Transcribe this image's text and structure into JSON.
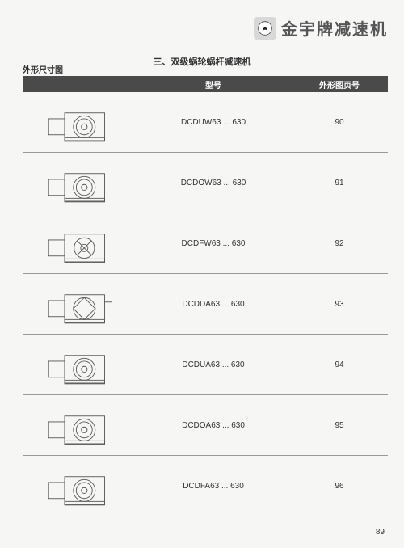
{
  "brand": "金宇牌减速机",
  "section_title": "三、双级蜗轮蜗杆减速机",
  "subtitle": "外形尺寸图",
  "columns": {
    "model": "型号",
    "page": "外形图页号"
  },
  "rows": [
    {
      "model": "DCDUW63 ... 630",
      "page": "90"
    },
    {
      "model": "DCDOW63 ... 630",
      "page": "91"
    },
    {
      "model": "DCDFW63 ... 630",
      "page": "92"
    },
    {
      "model": "DCDDA63 ... 630",
      "page": "93"
    },
    {
      "model": "DCDUA63 ... 630",
      "page": "94"
    },
    {
      "model": "DCDOA63 ... 630",
      "page": "95"
    },
    {
      "model": "DCDFA63 ... 630",
      "page": "96"
    }
  ],
  "page_number": "89",
  "colors": {
    "header_bg": "#4a4a4a",
    "header_text": "#ffffff",
    "border": "#999999",
    "page_bg": "#f6f6f5",
    "text": "#333333",
    "brand_text": "#555555"
  }
}
